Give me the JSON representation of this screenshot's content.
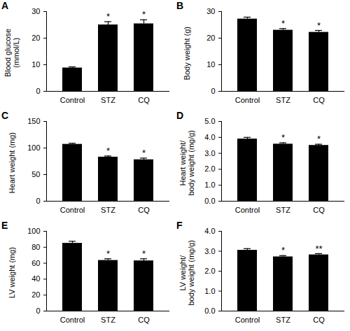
{
  "chart_data": [
    {
      "type": "bar",
      "title": "A",
      "y_label": "Blood glucose\n(mmol/L)",
      "categories": [
        "Control",
        "STZ",
        "CQ"
      ],
      "values": [
        8.8,
        25.0,
        25.4
      ],
      "errors": [
        0.4,
        1.2,
        1.5
      ],
      "annotations": [
        null,
        "*",
        "*"
      ],
      "color": "#000000",
      "ylim": [
        0,
        30
      ],
      "yticks": [
        0,
        10,
        20,
        30
      ]
    },
    {
      "type": "bar",
      "title": "B",
      "y_label": "Body weight (g)",
      "categories": [
        "Control",
        "STZ",
        "CQ"
      ],
      "values": [
        27.2,
        23.0,
        22.2
      ],
      "errors": [
        0.7,
        0.6,
        0.7
      ],
      "annotations": [
        null,
        "*",
        "*"
      ],
      "color": "#000000",
      "ylim": [
        0,
        30
      ],
      "yticks": [
        0,
        10,
        20,
        30
      ]
    },
    {
      "type": "bar",
      "title": "C",
      "y_label": "Heart weight (mg)",
      "categories": [
        "Control",
        "STZ",
        "CQ"
      ],
      "values": [
        107,
        83,
        78
      ],
      "errors": [
        2,
        2,
        3
      ],
      "annotations": [
        null,
        "*",
        "*"
      ],
      "color": "#000000",
      "ylim": [
        0,
        150
      ],
      "yticks": [
        0,
        50,
        100,
        150
      ]
    },
    {
      "type": "bar",
      "title": "D",
      "y_label": "Heart weight/\nbody weight (mg/g)",
      "categories": [
        "Control",
        "STZ",
        "CQ"
      ],
      "values": [
        3.9,
        3.58,
        3.5
      ],
      "errors": [
        0.1,
        0.08,
        0.07
      ],
      "annotations": [
        null,
        "*",
        "*"
      ],
      "color": "#000000",
      "ylim": [
        0,
        5
      ],
      "yticks": [
        0,
        1,
        2,
        3,
        4,
        5
      ]
    },
    {
      "type": "bar",
      "title": "E",
      "y_label": "LV weight (mg)",
      "categories": [
        "Control",
        "STZ",
        "CQ"
      ],
      "values": [
        85,
        63.5,
        63
      ],
      "errors": [
        2.5,
        2,
        2.5
      ],
      "annotations": [
        null,
        "*",
        "*"
      ],
      "color": "#000000",
      "ylim": [
        0,
        100
      ],
      "yticks": [
        0,
        20,
        40,
        60,
        80,
        100
      ]
    },
    {
      "type": "bar",
      "title": "F",
      "y_label": "LV weight/\nbody weight (mg/g)",
      "categories": [
        "Control",
        "STZ",
        "CQ"
      ],
      "values": [
        3.05,
        2.72,
        2.82
      ],
      "errors": [
        0.08,
        0.06,
        0.06
      ],
      "annotations": [
        null,
        "*",
        "**"
      ],
      "color": "#000000",
      "ylim": [
        0,
        4
      ],
      "yticks": [
        0,
        1,
        2,
        3,
        4
      ]
    }
  ]
}
